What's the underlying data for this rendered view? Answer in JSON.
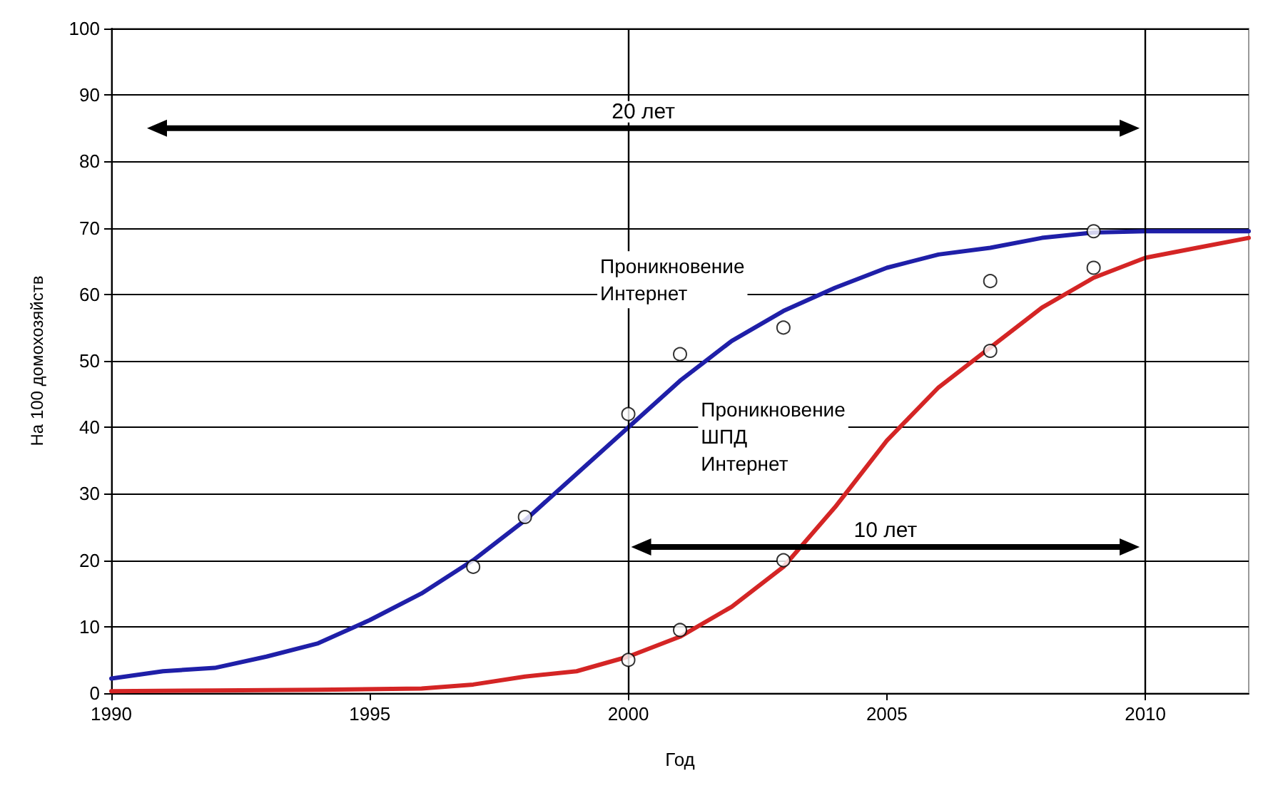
{
  "chart_data": {
    "type": "line",
    "xlabel": "Год",
    "ylabel": "На 100 домохозяйств",
    "xlim": [
      1990,
      2012
    ],
    "xticks": [
      1990,
      1995,
      2000,
      2005,
      2010
    ],
    "ylim": [
      0,
      100
    ],
    "yticks": [
      0,
      10,
      20,
      30,
      40,
      50,
      60,
      70,
      80,
      90,
      100
    ],
    "grid": "y",
    "legend": false,
    "series": [
      {
        "name": "Проникновение\nИнтернет",
        "color": "#1f1fa8",
        "marker": "none",
        "x": [
          1990,
          1991,
          1992,
          1993,
          1994,
          1995,
          1996,
          1997,
          1998,
          1999,
          2000,
          2001,
          2002,
          2003,
          2004,
          2005,
          2006,
          2007,
          2008,
          2009,
          2010,
          2011,
          2012
        ],
        "values": [
          2.2,
          3.3,
          3.8,
          5.5,
          7.5,
          11,
          15,
          20,
          26,
          33,
          40,
          47,
          53,
          57.5,
          61,
          64,
          66,
          67,
          68.5,
          69.3,
          69.5,
          69.5,
          69.5
        ]
      },
      {
        "name": "Проникновение\nШПД\nИнтернет",
        "color": "#d42525",
        "marker": "none",
        "x": [
          1990,
          1992,
          1994,
          1996,
          1997,
          1998,
          1999,
          2000,
          2001,
          2002,
          2003,
          2004,
          2005,
          2006,
          2007,
          2008,
          2009,
          2010,
          2011,
          2012
        ],
        "values": [
          0.3,
          0.4,
          0.5,
          0.7,
          1.3,
          2.5,
          3.3,
          5.5,
          8.5,
          13,
          19,
          28,
          38,
          46,
          52,
          58,
          62.5,
          65.5,
          67,
          68.5
        ]
      },
      {
        "type": "scatter",
        "color": "#ffffff",
        "marker": "circle",
        "x": [
          1997,
          1998,
          2000,
          2001,
          2003,
          2007,
          2009
        ],
        "values": [
          19,
          26.5,
          42,
          51,
          55,
          62,
          69.5
        ]
      },
      {
        "type": "scatter",
        "color": "#ffffff",
        "marker": "circle",
        "x": [
          2000,
          2001,
          2003,
          2007,
          2009
        ],
        "values": [
          5,
          9.5,
          20,
          51.5,
          64
        ]
      }
    ],
    "ref_lines": [
      {
        "axis": "x",
        "value": 2000,
        "color": "#000000"
      },
      {
        "axis": "x",
        "value": 2010,
        "color": "#000000"
      }
    ],
    "annotations": [
      "20 лет",
      "10 лет"
    ]
  }
}
